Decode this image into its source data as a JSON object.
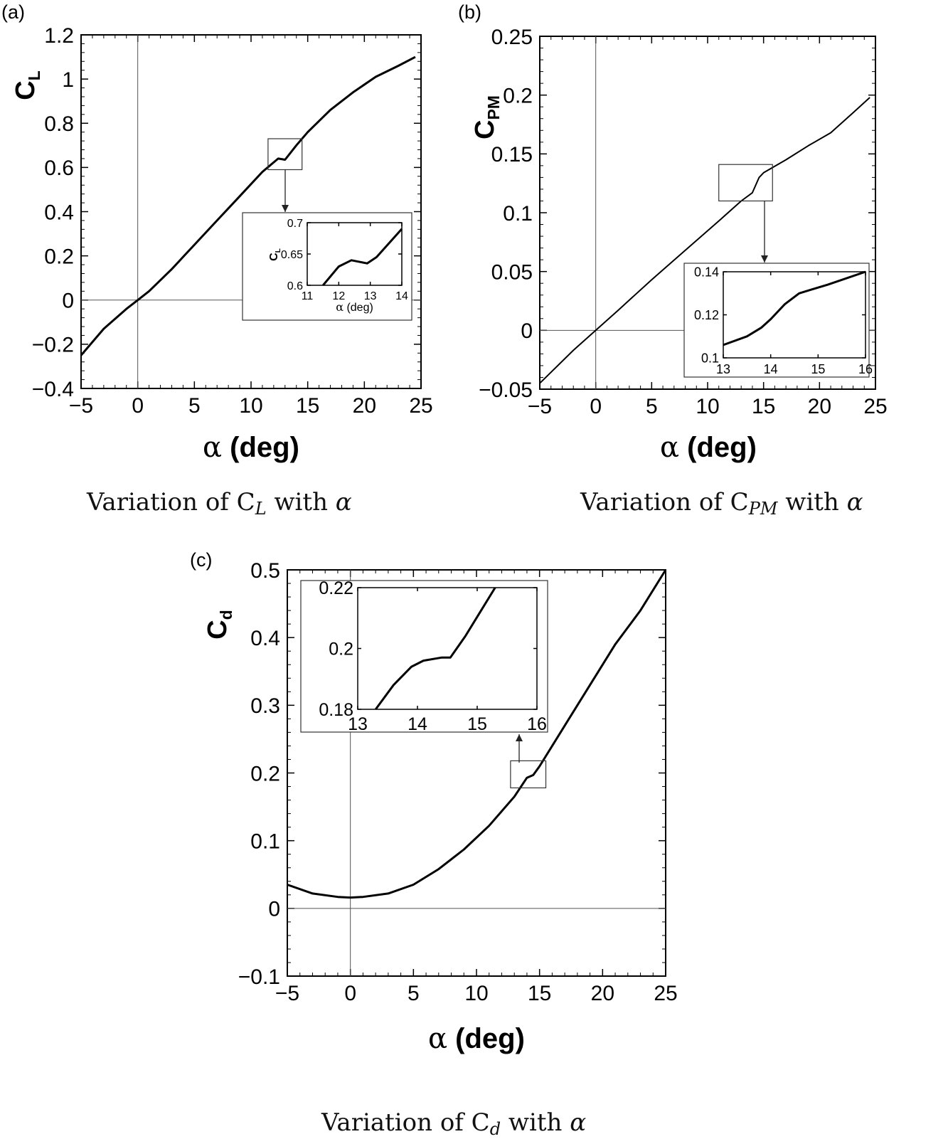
{
  "chart_data": [
    {
      "panel_label": "(a)",
      "type": "line",
      "caption": {
        "prefix": "Variation of C",
        "sub": "L",
        "mid": " with ",
        "var": "α"
      },
      "ylabel": {
        "base": "C",
        "sub": "L"
      },
      "xlabel": {
        "greek": "α",
        "rest": " (deg)"
      },
      "xlim": [
        -5,
        25
      ],
      "ylim": [
        -0.4,
        1.2
      ],
      "xticks": [
        "−5",
        "0",
        "5",
        "10",
        "15",
        "20",
        "25"
      ],
      "xtick_values": [
        -5,
        0,
        5,
        10,
        15,
        20,
        25
      ],
      "yticks": [
        "−0.4",
        "−0.2",
        "0",
        "0.2",
        "0.4",
        "0.6",
        "0.8",
        "1",
        "1.2"
      ],
      "ytick_values": [
        -0.4,
        -0.2,
        0,
        0.2,
        0.4,
        0.6,
        0.8,
        1.0,
        1.2
      ],
      "series": [
        {
          "x": [
            -5,
            -3,
            -1,
            0,
            1,
            3,
            5,
            7,
            9,
            11,
            12.4,
            13,
            14,
            15,
            17,
            19,
            21,
            23,
            24.5
          ],
          "y": [
            -0.25,
            -0.13,
            -0.04,
            0.0,
            0.04,
            0.14,
            0.25,
            0.36,
            0.47,
            0.58,
            0.64,
            0.635,
            0.7,
            0.76,
            0.86,
            0.94,
            1.01,
            1.06,
            1.1
          ]
        }
      ],
      "zoom_box": {
        "x": [
          11.5,
          14.5
        ],
        "y": [
          0.59,
          0.73
        ]
      },
      "inset": {
        "xlabel": {
          "greek": "α",
          "rest": " (deg)"
        },
        "ylabel": {
          "base": "C",
          "sub": "L"
        },
        "xlim": [
          11,
          14
        ],
        "ylim": [
          0.6,
          0.7
        ],
        "xticks": [
          "11",
          "12",
          "13",
          "14"
        ],
        "xtick_values": [
          11,
          12,
          13,
          14
        ],
        "yticks": [
          "0.6",
          "0.65",
          "0.7"
        ],
        "ytick_values": [
          0.6,
          0.65,
          0.7
        ],
        "series": [
          {
            "x": [
              11.5,
              12,
              12.4,
              12.9,
              13.2,
              14
            ],
            "y": [
              0.6,
              0.63,
              0.64,
              0.635,
              0.645,
              0.69
            ]
          }
        ]
      }
    },
    {
      "panel_label": "(b)",
      "type": "line",
      "caption": {
        "prefix": "Variation of C",
        "sub": "PM",
        "mid": " with ",
        "var": "α"
      },
      "ylabel": {
        "base": "C",
        "sub": "PM"
      },
      "xlabel": {
        "greek": "α",
        "rest": " (deg)"
      },
      "xlim": [
        -5,
        25
      ],
      "ylim": [
        -0.05,
        0.25
      ],
      "xticks": [
        "−5",
        "0",
        "5",
        "10",
        "15",
        "20",
        "25"
      ],
      "xtick_values": [
        -5,
        0,
        5,
        10,
        15,
        20,
        25
      ],
      "yticks": [
        "−0.05",
        "0",
        "0.05",
        "0.1",
        "0.15",
        "0.2",
        "0.25"
      ],
      "ytick_values": [
        -0.05,
        0,
        0.05,
        0.1,
        0.15,
        0.2,
        0.25
      ],
      "series": [
        {
          "x": [
            -5,
            -2,
            0,
            2,
            5,
            8,
            11,
            13,
            14,
            14.6,
            15,
            17,
            19,
            21,
            23,
            24.5
          ],
          "y": [
            -0.045,
            -0.017,
            0.0,
            0.017,
            0.043,
            0.068,
            0.093,
            0.11,
            0.117,
            0.13,
            0.134,
            0.145,
            0.157,
            0.168,
            0.185,
            0.198
          ]
        }
      ],
      "zoom_box": {
        "x": [
          11,
          15.8
        ],
        "y": [
          0.11,
          0.141
        ]
      },
      "inset": {
        "xlim": [
          13,
          16
        ],
        "ylim": [
          0.1,
          0.14
        ],
        "xticks": [
          "13",
          "14",
          "15",
          "16"
        ],
        "xtick_values": [
          13,
          14,
          15,
          16
        ],
        "yticks": [
          "0.1",
          "0.12",
          "0.14"
        ],
        "ytick_values": [
          0.1,
          0.12,
          0.14
        ],
        "series": [
          {
            "x": [
              13,
              13.5,
              13.8,
              14.0,
              14.3,
              14.6,
              14.9,
              15.2,
              16
            ],
            "y": [
              0.106,
              0.11,
              0.114,
              0.118,
              0.125,
              0.13,
              0.132,
              0.134,
              0.14
            ]
          }
        ]
      }
    },
    {
      "panel_label": "(c)",
      "type": "line",
      "caption": {
        "prefix": "Variation of C",
        "sub": "d",
        "mid": " with ",
        "var": "α"
      },
      "ylabel": {
        "base": "C",
        "sub": "d"
      },
      "xlabel": {
        "greek": "α",
        "rest": " (deg)"
      },
      "xlim": [
        -5,
        25
      ],
      "ylim": [
        -0.1,
        0.5
      ],
      "xticks": [
        "−5",
        "0",
        "5",
        "10",
        "15",
        "20",
        "25"
      ],
      "xtick_values": [
        -5,
        0,
        5,
        10,
        15,
        20,
        25
      ],
      "yticks": [
        "−0.1",
        "0",
        "0.1",
        "0.2",
        "0.3",
        "0.4",
        "0.5"
      ],
      "ytick_values": [
        -0.1,
        0,
        0.1,
        0.2,
        0.3,
        0.4,
        0.5
      ],
      "series": [
        {
          "x": [
            -5,
            -3,
            -1,
            0,
            1,
            3,
            5,
            7,
            9,
            11,
            13,
            14,
            14.5,
            15,
            17,
            19,
            21,
            23,
            25
          ],
          "y": [
            0.035,
            0.022,
            0.017,
            0.016,
            0.017,
            0.022,
            0.035,
            0.058,
            0.087,
            0.122,
            0.165,
            0.193,
            0.197,
            0.21,
            0.27,
            0.33,
            0.39,
            0.44,
            0.5
          ]
        }
      ],
      "zoom_box": {
        "x": [
          12.7,
          15.5
        ],
        "y": [
          0.178,
          0.218
        ]
      },
      "inset": {
        "xlim": [
          13,
          16
        ],
        "ylim": [
          0.18,
          0.22
        ],
        "xticks": [
          "13",
          "14",
          "15",
          "16"
        ],
        "xtick_values": [
          13,
          14,
          15,
          16
        ],
        "yticks": [
          "0.18",
          "0.2",
          "0.22"
        ],
        "ytick_values": [
          0.18,
          0.2,
          0.22
        ],
        "series": [
          {
            "x": [
              13.3,
              13.6,
              13.9,
              14.1,
              14.4,
              14.55,
              14.8,
              15.05,
              15.3
            ],
            "y": [
              0.18,
              0.188,
              0.194,
              0.196,
              0.197,
              0.197,
              0.204,
              0.212,
              0.22
            ]
          }
        ]
      }
    }
  ]
}
